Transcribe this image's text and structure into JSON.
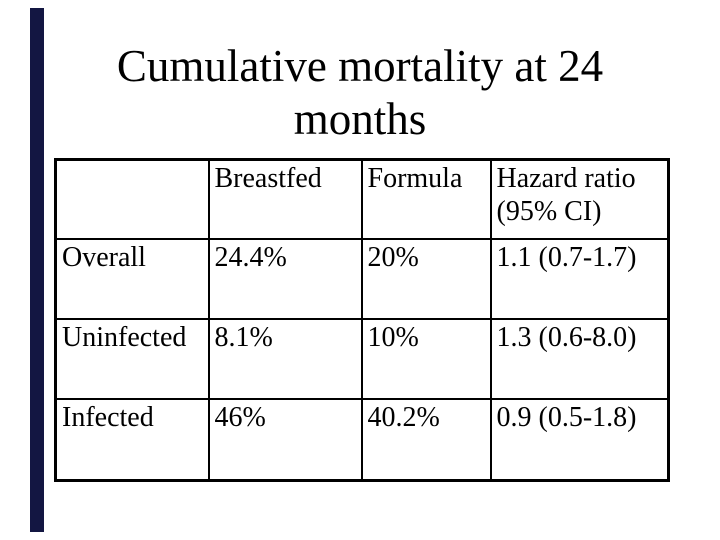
{
  "slide": {
    "title": "Cumulative mortality at 24 months",
    "background_color": "#ffffff",
    "text_color": "#000000",
    "accent_bar_color": "#131642",
    "table_border_color": "#000000"
  },
  "table": {
    "columns": [
      "",
      "Breastfed",
      "Formula",
      "Hazard ratio (95% CI)"
    ],
    "rows": [
      [
        "Overall",
        "24.4%",
        "20%",
        "1.1 (0.7-1.7)"
      ],
      [
        "Uninfected",
        "8.1%",
        "10%",
        "1.3 (0.6-8.0)"
      ],
      [
        "Infected",
        "46%",
        "40.2%",
        "0.9 (0.5-1.8)"
      ]
    ]
  }
}
